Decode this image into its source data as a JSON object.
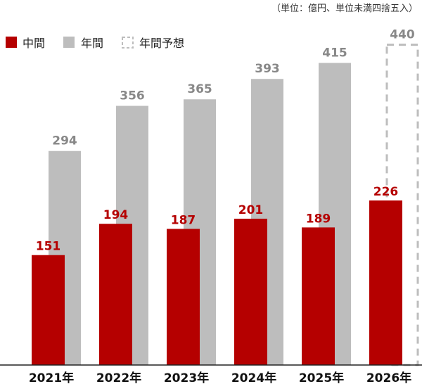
{
  "unit_note": "（単位：億円、単位未満四捨五入）",
  "colors": {
    "half_year": "#b50000",
    "full_year": "#bdbdbd",
    "forecast_border": "#bdbdbd",
    "full_year_label": "#888888",
    "half_year_label": "#b50000",
    "baseline": "#222222"
  },
  "chart_data": {
    "type": "bar",
    "title": "",
    "xlabel": "",
    "ylabel": "",
    "categories": [
      "2021年",
      "2022年",
      "2023年",
      "2024年",
      "2025年",
      "2026年"
    ],
    "series": [
      {
        "name": "中間",
        "values": [
          151,
          194,
          187,
          201,
          189,
          226
        ]
      },
      {
        "name": "年間",
        "values": [
          294,
          356,
          365,
          393,
          415,
          null
        ]
      },
      {
        "name": "年間予想",
        "values": [
          null,
          null,
          null,
          null,
          null,
          440
        ]
      }
    ],
    "ylim": [
      0,
      466
    ],
    "grid": false,
    "legend": "top-left"
  }
}
